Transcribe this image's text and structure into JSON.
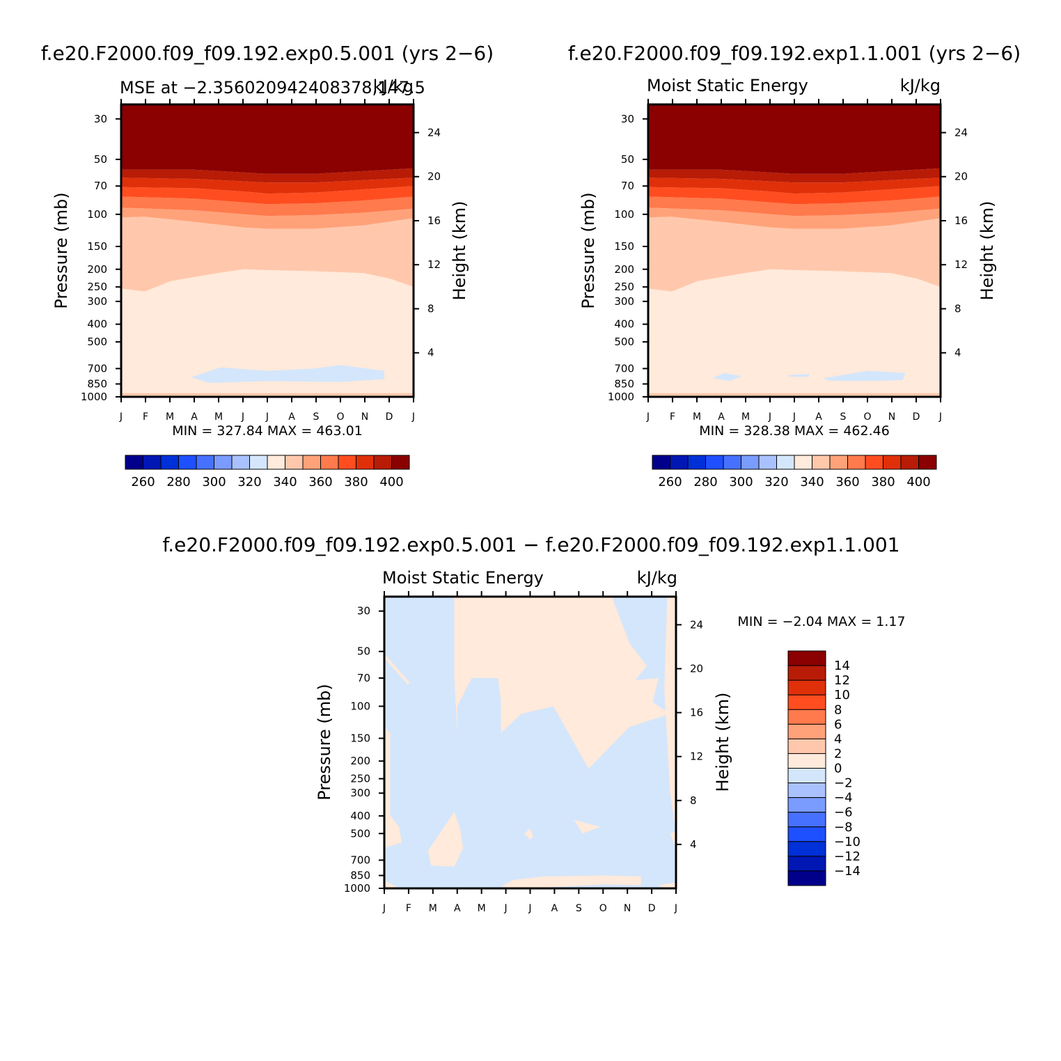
{
  "panels": [
    {
      "case_title": "f.e20.F2000.f09_f09.192.exp0.5.001 (yrs 2−6)",
      "left_string": "MSE at −2.356020942408378,147.5",
      "right_string": "kJ/kg",
      "min_max": "MIN = 327.84 MAX = 463.01"
    },
    {
      "case_title": "f.e20.F2000.f09_f09.192.exp1.1.001 (yrs 2−6)",
      "left_string": "Moist Static Energy",
      "right_string": "kJ/kg",
      "min_max": "MIN = 328.38 MAX = 462.46"
    },
    {
      "case_title": "f.e20.F2000.f09_f09.192.exp0.5.001 − f.e20.F2000.f09_f09.192.exp1.1.001",
      "left_string": "Moist Static Energy",
      "right_string": "kJ/kg",
      "min_max": "MIN =   −2.04 MAX =    1.17"
    }
  ],
  "chart_data": [
    {
      "type": "heatmap",
      "title": "f.e20.F2000.f09_f09.192.exp0.5.001 (yrs 2−6)",
      "subtitle": "MSE at −2.356020942408378,147.5",
      "units": "kJ/kg",
      "xlabel": "",
      "ylabel": "Pressure (mb)",
      "y2label": "Height (km)",
      "x_ticks": [
        "J",
        "F",
        "M",
        "A",
        "M",
        "J",
        "J",
        "A",
        "S",
        "O",
        "N",
        "D",
        "J"
      ],
      "y_ticks": [
        30,
        50,
        70,
        100,
        150,
        200,
        250,
        300,
        400,
        500,
        700,
        850,
        1000
      ],
      "y2_ticks": [
        24,
        20,
        16,
        12,
        8,
        4
      ],
      "y_scale": "log",
      "ylim": [
        1000,
        25
      ],
      "contour_levels": [
        260,
        270,
        280,
        290,
        300,
        310,
        320,
        330,
        340,
        350,
        360,
        370,
        380,
        390,
        400
      ],
      "min": 327.84,
      "max": 463.01,
      "colorbar_labels": [
        "260",
        "280",
        "300",
        "320",
        "340",
        "360",
        "380",
        "400"
      ]
    },
    {
      "type": "heatmap",
      "title": "f.e20.F2000.f09_f09.192.exp1.1.001 (yrs 2−6)",
      "subtitle": "Moist Static Energy",
      "units": "kJ/kg",
      "xlabel": "",
      "ylabel": "Pressure (mb)",
      "y2label": "Height (km)",
      "x_ticks": [
        "J",
        "F",
        "M",
        "A",
        "M",
        "J",
        "J",
        "A",
        "S",
        "O",
        "N",
        "D",
        "J"
      ],
      "y_ticks": [
        30,
        50,
        70,
        100,
        150,
        200,
        250,
        300,
        400,
        500,
        700,
        850,
        1000
      ],
      "y2_ticks": [
        24,
        20,
        16,
        12,
        8,
        4
      ],
      "y_scale": "log",
      "ylim": [
        1000,
        25
      ],
      "contour_levels": [
        260,
        270,
        280,
        290,
        300,
        310,
        320,
        330,
        340,
        350,
        360,
        370,
        380,
        390,
        400
      ],
      "min": 328.38,
      "max": 462.46,
      "colorbar_labels": [
        "260",
        "280",
        "300",
        "320",
        "340",
        "360",
        "380",
        "400"
      ]
    },
    {
      "type": "heatmap",
      "title": "f.e20.F2000.f09_f09.192.exp0.5.001 − f.e20.F2000.f09_f09.192.exp1.1.001",
      "subtitle": "Moist Static Energy",
      "units": "kJ/kg",
      "xlabel": "",
      "ylabel": "Pressure (mb)",
      "y2label": "Height (km)",
      "x_ticks": [
        "J",
        "F",
        "M",
        "A",
        "M",
        "J",
        "J",
        "A",
        "S",
        "O",
        "N",
        "D",
        "J"
      ],
      "y_ticks": [
        30,
        50,
        70,
        100,
        150,
        200,
        250,
        300,
        400,
        500,
        700,
        850,
        1000
      ],
      "y2_ticks": [
        24,
        20,
        16,
        12,
        8,
        4
      ],
      "y_scale": "log",
      "ylim": [
        1000,
        25
      ],
      "contour_levels": [
        -14,
        -12,
        -10,
        -8,
        -6,
        -4,
        -2,
        0,
        2,
        4,
        6,
        8,
        10,
        12,
        14
      ],
      "min": -2.04,
      "max": 1.17,
      "colorbar_labels": [
        "14",
        "12",
        "10",
        "8",
        "6",
        "4",
        "2",
        "0",
        "−2",
        "−4",
        "−6",
        "−8",
        "−10",
        "−12",
        "−14"
      ]
    }
  ],
  "colors": {
    "scale": [
      "#00008b",
      "#0017b3",
      "#0030d8",
      "#1e50ff",
      "#4671ff",
      "#7a9cff",
      "#a9c2ff",
      "#d4e6fb",
      "#ffeadb",
      "#ffc8ac",
      "#ffa27a",
      "#ff7a4c",
      "#ff4d1f",
      "#e0300a",
      "#b81c06",
      "#8b0000"
    ],
    "stratosphere": "#8b0000",
    "band_390": "#b81c06",
    "band_380": "#e0300a",
    "band_370": "#ff4d1f",
    "band_360": "#ff7a4c",
    "band_350": "#ffa27a",
    "band_340": "#ffc8ac",
    "band_330": "#ffeadb",
    "band_320": "#d4e6fb",
    "diff_neg": "#d4e6fb",
    "diff_pos": "#ffeadb"
  }
}
